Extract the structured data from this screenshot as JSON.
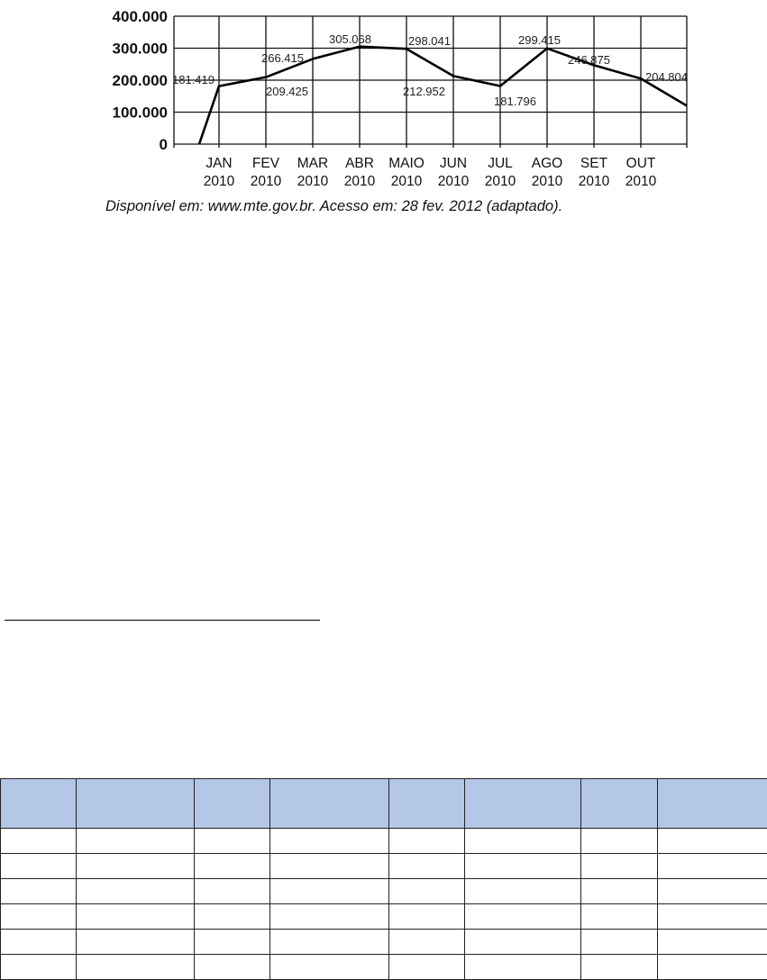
{
  "chart_data": {
    "type": "line",
    "categories": [
      "JAN 2010",
      "FEV 2010",
      "MAR 2010",
      "ABR 2010",
      "MAIO 2010",
      "JUN 2010",
      "JUL 2010",
      "AGO 2010",
      "SET 2010",
      "OUT 2010"
    ],
    "category_lines": [
      [
        "JAN",
        "2010"
      ],
      [
        "FEV",
        "2010"
      ],
      [
        "MAR",
        "2010"
      ],
      [
        "ABR",
        "2010"
      ],
      [
        "MAIO",
        "2010"
      ],
      [
        "JUN",
        "2010"
      ],
      [
        "JUL",
        "2010"
      ],
      [
        "AGO",
        "2010"
      ],
      [
        "SET",
        "2010"
      ],
      [
        "OUT",
        "2010"
      ]
    ],
    "values": [
      181419,
      209425,
      266415,
      305068,
      298041,
      212952,
      181796,
      299415,
      246875,
      204804
    ],
    "data_labels": [
      "181.419",
      "209.425",
      "266.415",
      "305.068",
      "298.041",
      "212.952",
      "181.796",
      "299.415",
      "246.875",
      "204.804"
    ],
    "line_start_value": 0,
    "line_end_value": 120000,
    "yticks": [
      0,
      100000,
      200000,
      300000,
      400000
    ],
    "ytick_labels": [
      "0",
      "100.000",
      "200.000",
      "300.000",
      "400.000"
    ],
    "ylim": [
      0,
      400000
    ],
    "grid": true,
    "line_color": "#000000",
    "title": "",
    "xlabel": "",
    "ylabel": ""
  },
  "source": "Disponível em: www.mte.gov.br. Acesso em: 28 fev. 2012 (adaptado).",
  "table": {
    "columns": 8,
    "body_rows": 6,
    "header_color": "#b4c7e7"
  }
}
